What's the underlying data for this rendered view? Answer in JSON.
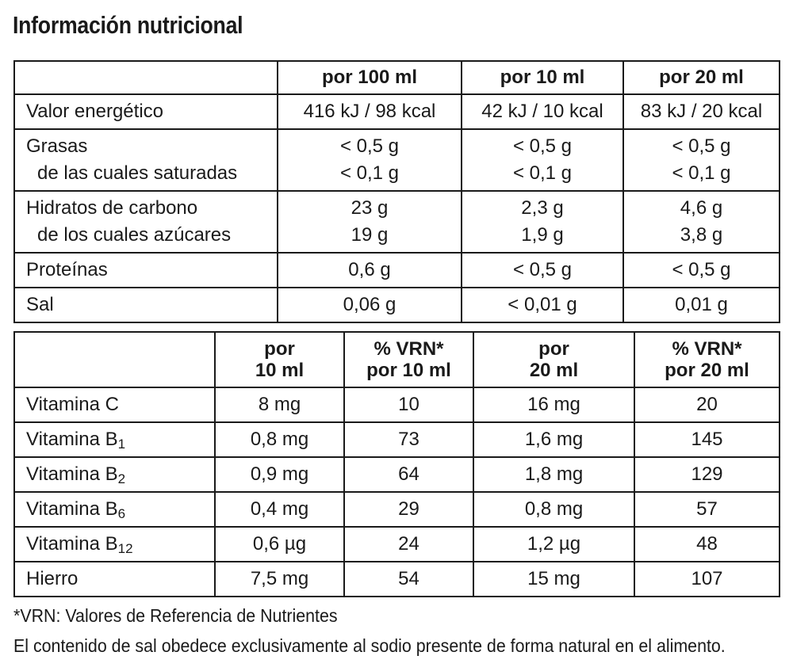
{
  "title": "Información nutricional",
  "table1": {
    "headers": [
      "",
      "por 100 ml",
      "por 10 ml",
      "por 20 ml"
    ],
    "rows": [
      {
        "labels": [
          "Valor energético"
        ],
        "c1": [
          "416 kJ / 98 kcal"
        ],
        "c2": [
          "42 kJ / 10 kcal"
        ],
        "c3": [
          "83 kJ / 20 kcal"
        ]
      },
      {
        "labels": [
          "Grasas",
          "de las cuales saturadas"
        ],
        "c1": [
          "< 0,5 g",
          "< 0,1 g"
        ],
        "c2": [
          "< 0,5 g",
          "< 0,1 g"
        ],
        "c3": [
          "< 0,5 g",
          "< 0,1 g"
        ]
      },
      {
        "labels": [
          "Hidratos de carbono",
          "de los cuales azúcares"
        ],
        "c1": [
          "23 g",
          "19 g"
        ],
        "c2": [
          "2,3 g",
          "1,9 g"
        ],
        "c3": [
          "4,6 g",
          "3,8 g"
        ]
      },
      {
        "labels": [
          "Proteínas"
        ],
        "c1": [
          "0,6 g"
        ],
        "c2": [
          "< 0,5 g"
        ],
        "c3": [
          "< 0,5 g"
        ]
      },
      {
        "labels": [
          "Sal"
        ],
        "c1": [
          "0,06 g"
        ],
        "c2": [
          "< 0,01 g"
        ],
        "c3": [
          "0,01 g"
        ]
      }
    ]
  },
  "table2": {
    "headers": [
      [
        "",
        ""
      ],
      [
        "por",
        "10 ml"
      ],
      [
        "% VRN*",
        "por 10 ml"
      ],
      [
        "por",
        "20 ml"
      ],
      [
        "% VRN*",
        "por 20 ml"
      ]
    ],
    "rows": [
      {
        "name": "Vitamina C",
        "sub": "",
        "c1": "8 mg",
        "c2": "10",
        "c3": "16 mg",
        "c4": "20"
      },
      {
        "name": "Vitamina B",
        "sub": "1",
        "c1": "0,8 mg",
        "c2": "73",
        "c3": "1,6 mg",
        "c4": "145"
      },
      {
        "name": "Vitamina B",
        "sub": "2",
        "c1": "0,9 mg",
        "c2": "64",
        "c3": "1,8 mg",
        "c4": "129"
      },
      {
        "name": "Vitamina B",
        "sub": "6",
        "c1": "0,4 mg",
        "c2": "29",
        "c3": "0,8 mg",
        "c4": "57"
      },
      {
        "name": "Vitamina B",
        "sub": "12",
        "c1": "0,6 µg",
        "c2": "24",
        "c3": "1,2 µg",
        "c4": "48"
      },
      {
        "name": "Hierro",
        "sub": "",
        "c1": "7,5 mg",
        "c2": "54",
        "c3": "15 mg",
        "c4": "107"
      }
    ]
  },
  "notes": [
    "*VRN: Valores de Referencia de Nutrientes",
    "El contenido de sal obedece exclusivamente al sodio presente de forma natural en el alimento."
  ]
}
